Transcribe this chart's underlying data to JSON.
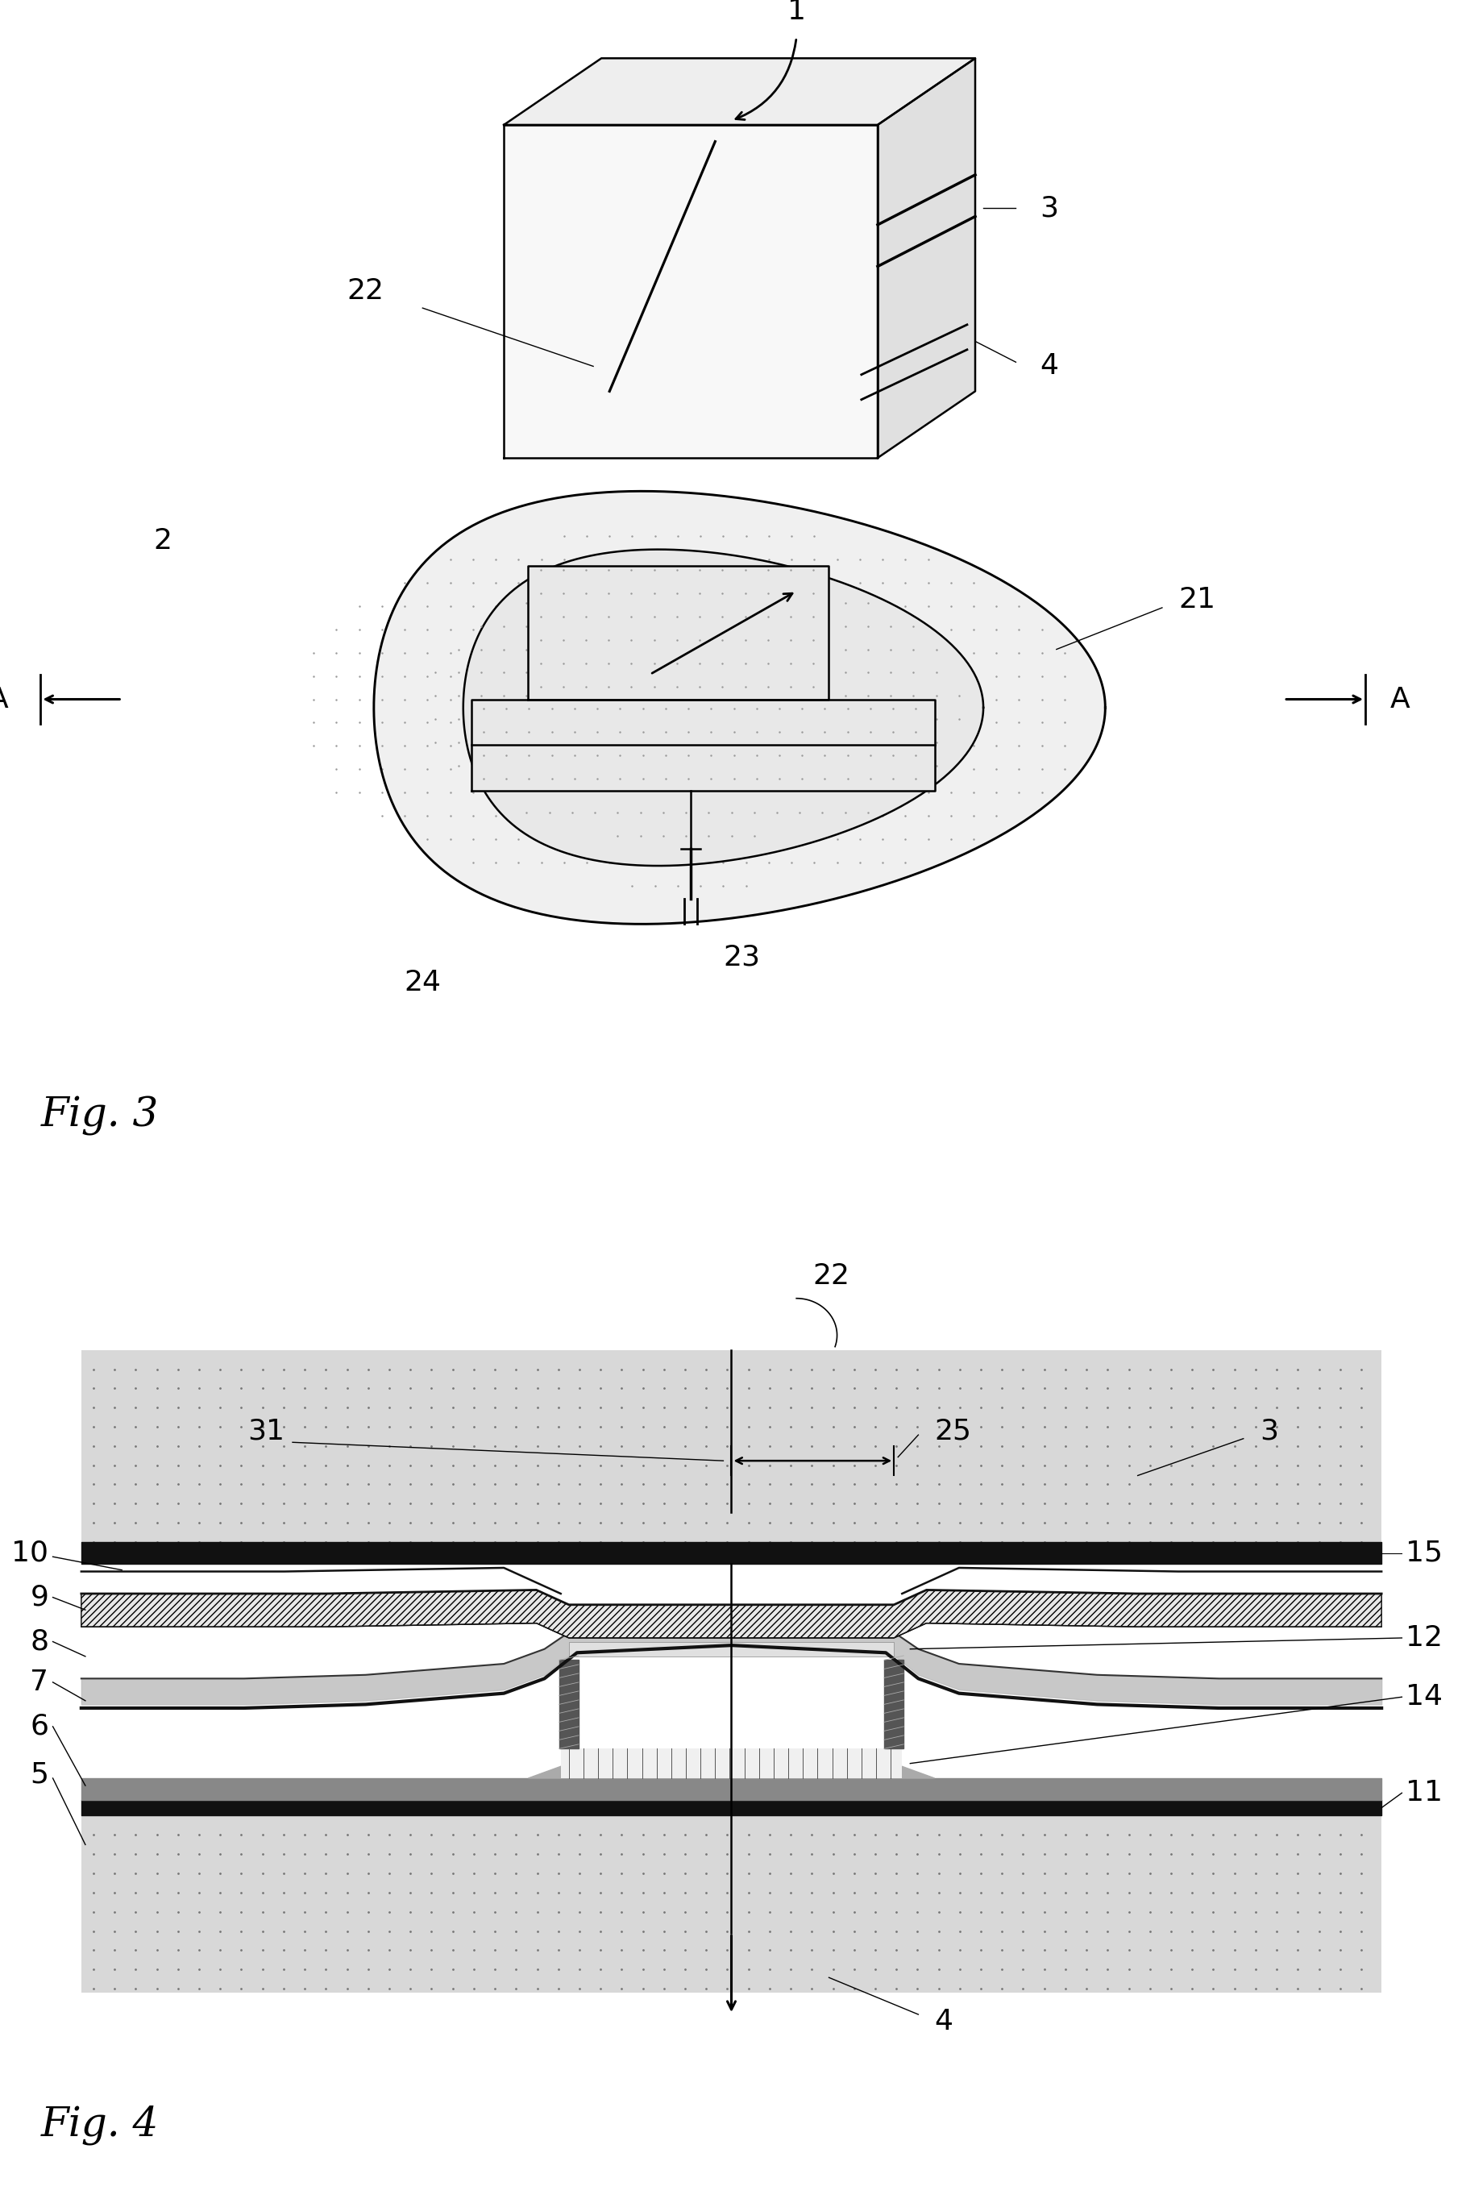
{
  "bg_color": "#ffffff",
  "fig3_label": "Fig. 3",
  "fig4_label": "Fig. 4",
  "lc": "#000000",
  "dot_color": "#999999",
  "hatch_fill": "#e0e0e0",
  "gray_light": "#cccccc",
  "gray_mid": "#aaaaaa",
  "gray_dark": "#666666",
  "black": "#111111",
  "font_size_fig": 36,
  "font_size_num": 26
}
